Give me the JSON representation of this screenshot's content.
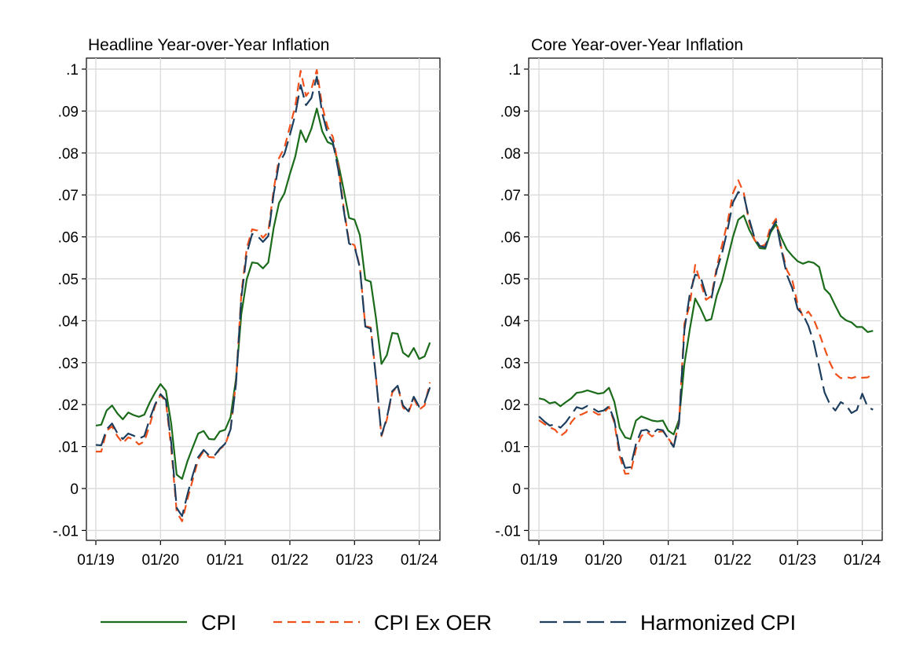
{
  "chart_data": [
    {
      "type": "line",
      "title": "Headline Year-over-Year Inflation",
      "xlabel": "",
      "ylabel": "",
      "ylim": [
        -0.012,
        0.1
      ],
      "x_ticks": [
        {
          "value": 0,
          "label": "01/19"
        },
        {
          "value": 12,
          "label": "01/20"
        },
        {
          "value": 24,
          "label": "01/21"
        },
        {
          "value": 36,
          "label": "01/22"
        },
        {
          "value": 48,
          "label": "01/23"
        },
        {
          "value": 60,
          "label": "01/24"
        }
      ],
      "y_ticks": [
        {
          "value": -0.01,
          "label": "-.01"
        },
        {
          "value": 0,
          "label": "0"
        },
        {
          "value": 0.01,
          "label": ".01"
        },
        {
          "value": 0.02,
          "label": ".02"
        },
        {
          "value": 0.03,
          "label": ".03"
        },
        {
          "value": 0.04,
          "label": ".04"
        },
        {
          "value": 0.05,
          "label": ".05"
        },
        {
          "value": 0.06,
          "label": ".06"
        },
        {
          "value": 0.07,
          "label": ".07"
        },
        {
          "value": 0.08,
          "label": ".08"
        },
        {
          "value": 0.09,
          "label": ".09"
        },
        {
          "value": 0.1,
          "label": ".1"
        }
      ],
      "grid": true,
      "series": [
        {
          "name": "CPI",
          "color": "#1a6b1a",
          "dash": "solid",
          "values": [
            0.015,
            0.0152,
            0.0186,
            0.0198,
            0.0179,
            0.0165,
            0.0181,
            0.0175,
            0.0171,
            0.0176,
            0.0205,
            0.0229,
            0.0249,
            0.0233,
            0.0154,
            0.0033,
            0.0023,
            0.0065,
            0.0099,
            0.0131,
            0.0137,
            0.0118,
            0.0117,
            0.0136,
            0.014,
            0.017,
            0.0262,
            0.0416,
            0.0499,
            0.0539,
            0.0537,
            0.0525,
            0.0539,
            0.0622,
            0.0681,
            0.0704,
            0.075,
            0.0791,
            0.0854,
            0.0826,
            0.0858,
            0.0906,
            0.0852,
            0.0826,
            0.082,
            0.0775,
            0.0711,
            0.0645,
            0.0641,
            0.0604,
            0.0498,
            0.0493,
            0.0405,
            0.0297,
            0.0318,
            0.0371,
            0.0369,
            0.0324,
            0.0314,
            0.0335,
            0.0309,
            0.0315,
            0.0348
          ]
        },
        {
          "name": "CPI Ex OER",
          "color": "#f0501a",
          "dash": "11,7",
          "values": [
            0.0088,
            0.0088,
            0.0138,
            0.0148,
            0.0125,
            0.0108,
            0.0122,
            0.0117,
            0.0105,
            0.0112,
            0.0151,
            0.0198,
            0.0223,
            0.0207,
            0.0095,
            -0.0056,
            -0.0078,
            -0.0025,
            0.0022,
            0.0069,
            0.0089,
            0.0075,
            0.0074,
            0.0094,
            0.0104,
            0.0142,
            0.0254,
            0.0465,
            0.0573,
            0.0618,
            0.0615,
            0.0598,
            0.0612,
            0.0713,
            0.0788,
            0.0813,
            0.0863,
            0.0911,
            0.0996,
            0.0936,
            0.0953,
            0.0998,
            0.0912,
            0.0862,
            0.0838,
            0.0769,
            0.0669,
            0.0587,
            0.058,
            0.0528,
            0.0387,
            0.0384,
            0.0264,
            0.0125,
            0.0164,
            0.0229,
            0.0244,
            0.0193,
            0.0181,
            0.0215,
            0.0188,
            0.0198,
            0.0253
          ]
        },
        {
          "name": "Harmonized CPI",
          "color": "#1c3d5e",
          "dash": "22,8",
          "values": [
            0.0104,
            0.0103,
            0.0141,
            0.0155,
            0.0132,
            0.0118,
            0.0131,
            0.0126,
            0.0119,
            0.0125,
            0.0166,
            0.0201,
            0.0225,
            0.0211,
            0.0108,
            -0.0046,
            -0.0066,
            -0.0014,
            0.0033,
            0.0075,
            0.0092,
            0.0079,
            0.0078,
            0.0095,
            0.0107,
            0.0141,
            0.0249,
            0.0455,
            0.056,
            0.0607,
            0.0602,
            0.0588,
            0.0602,
            0.0703,
            0.0776,
            0.0798,
            0.0843,
            0.0891,
            0.0962,
            0.0914,
            0.0931,
            0.0982,
            0.0895,
            0.0847,
            0.0825,
            0.0759,
            0.0663,
            0.0584,
            0.0577,
            0.0526,
            0.0386,
            0.0381,
            0.0263,
            0.0127,
            0.0168,
            0.0232,
            0.0245,
            0.0198,
            0.0184,
            0.0219,
            0.0195,
            0.0205,
            0.0241
          ]
        }
      ]
    },
    {
      "type": "line",
      "title": "Core Year-over-Year Inflation",
      "xlabel": "",
      "ylabel": "",
      "ylim": [
        -0.012,
        0.1
      ],
      "x_ticks": [
        {
          "value": 0,
          "label": "01/19"
        },
        {
          "value": 12,
          "label": "01/20"
        },
        {
          "value": 24,
          "label": "01/21"
        },
        {
          "value": 36,
          "label": "01/22"
        },
        {
          "value": 48,
          "label": "01/23"
        },
        {
          "value": 60,
          "label": "01/24"
        }
      ],
      "y_ticks": [
        {
          "value": -0.01,
          "label": "-.01"
        },
        {
          "value": 0,
          "label": "0"
        },
        {
          "value": 0.01,
          "label": ".01"
        },
        {
          "value": 0.02,
          "label": ".02"
        },
        {
          "value": 0.03,
          "label": ".03"
        },
        {
          "value": 0.04,
          "label": ".04"
        },
        {
          "value": 0.05,
          "label": ".05"
        },
        {
          "value": 0.06,
          "label": ".06"
        },
        {
          "value": 0.07,
          "label": ".07"
        },
        {
          "value": 0.08,
          "label": ".08"
        },
        {
          "value": 0.09,
          "label": ".09"
        },
        {
          "value": 0.1,
          "label": ".1"
        }
      ],
      "grid": true,
      "series": [
        {
          "name": "CPI",
          "color": "#1a6b1a",
          "dash": "solid",
          "values": [
            0.0215,
            0.0212,
            0.0203,
            0.0206,
            0.0196,
            0.0206,
            0.0215,
            0.0228,
            0.023,
            0.0234,
            0.023,
            0.0226,
            0.0228,
            0.024,
            0.0207,
            0.0144,
            0.0122,
            0.0118,
            0.0162,
            0.0172,
            0.0167,
            0.0162,
            0.016,
            0.0162,
            0.0138,
            0.0129,
            0.0164,
            0.0297,
            0.038,
            0.0453,
            0.0429,
            0.04,
            0.0404,
            0.046,
            0.0495,
            0.0547,
            0.06,
            0.0641,
            0.0651,
            0.0618,
            0.0593,
            0.0573,
            0.0572,
            0.0611,
            0.063,
            0.0597,
            0.057,
            0.0555,
            0.0542,
            0.0536,
            0.0541,
            0.0538,
            0.0528,
            0.0476,
            0.0463,
            0.0436,
            0.0411,
            0.0401,
            0.0396,
            0.0385,
            0.0385,
            0.0373,
            0.0376
          ]
        },
        {
          "name": "CPI Ex OER",
          "color": "#f0501a",
          "dash": "11,7",
          "values": [
            0.0163,
            0.0154,
            0.0146,
            0.014,
            0.0125,
            0.0135,
            0.0158,
            0.0173,
            0.0177,
            0.0183,
            0.0184,
            0.0176,
            0.0179,
            0.0195,
            0.0157,
            0.0077,
            0.0035,
            0.0036,
            0.0094,
            0.0125,
            0.0135,
            0.0124,
            0.0134,
            0.0137,
            0.012,
            0.0101,
            0.0159,
            0.0393,
            0.0438,
            0.0533,
            0.0491,
            0.045,
            0.0459,
            0.0528,
            0.0581,
            0.0635,
            0.0704,
            0.0735,
            0.0705,
            0.0636,
            0.0593,
            0.0577,
            0.0581,
            0.0625,
            0.0643,
            0.0573,
            0.0521,
            0.0498,
            0.044,
            0.041,
            0.0422,
            0.0403,
            0.0371,
            0.0334,
            0.03,
            0.0274,
            0.0263,
            0.0266,
            0.0263,
            0.0267,
            0.0264,
            0.0265,
            0.0273
          ]
        },
        {
          "name": "Harmonized CPI",
          "color": "#1c3d5e",
          "dash": "22,8",
          "values": [
            0.0172,
            0.016,
            0.015,
            0.0153,
            0.0145,
            0.0158,
            0.0176,
            0.0194,
            0.019,
            0.0197,
            0.0191,
            0.0183,
            0.0186,
            0.0196,
            0.0163,
            0.0088,
            0.0049,
            0.0051,
            0.0106,
            0.0138,
            0.014,
            0.013,
            0.0141,
            0.0139,
            0.0118,
            0.0099,
            0.0156,
            0.0378,
            0.0464,
            0.051,
            0.0505,
            0.0461,
            0.0452,
            0.0521,
            0.0562,
            0.0617,
            0.0682,
            0.0707,
            0.07,
            0.0644,
            0.0598,
            0.0578,
            0.0575,
            0.0615,
            0.0637,
            0.0569,
            0.051,
            0.0478,
            0.0428,
            0.0415,
            0.0388,
            0.0348,
            0.029,
            0.0229,
            0.0201,
            0.0186,
            0.0206,
            0.0199,
            0.018,
            0.0187,
            0.0226,
            0.0194,
            0.0188
          ]
        }
      ]
    }
  ],
  "legend": {
    "placement": "bottom",
    "items": [
      {
        "label": "CPI",
        "color": "#1a6b1a",
        "dash": "solid"
      },
      {
        "label": "CPI Ex OER",
        "color": "#f0501a",
        "dash": "11,7"
      },
      {
        "label": "Harmonized CPI",
        "color": "#1c3d5e",
        "dash": "22,8"
      }
    ]
  }
}
